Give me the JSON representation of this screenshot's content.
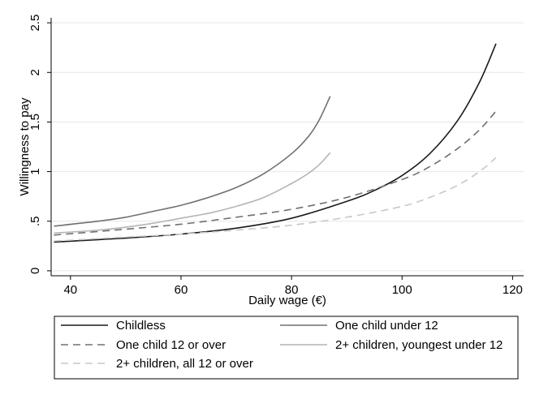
{
  "chart_data": {
    "type": "line",
    "xlabel": "Daily wage (€)",
    "ylabel": "Willingness to pay",
    "xlim": [
      36.5,
      122
    ],
    "ylim": [
      -0.05,
      2.55
    ],
    "x_ticks": [
      40,
      60,
      80,
      100,
      120
    ],
    "x_tick_labels": [
      "40",
      "60",
      "80",
      "100",
      "120"
    ],
    "y_ticks": [
      0,
      0.5,
      1,
      1.5,
      2,
      2.5
    ],
    "y_tick_labels": [
      "0",
      ".5",
      "1",
      "1.5",
      "2",
      "2.5"
    ],
    "grid": "horizontal",
    "legend_position": "bottom",
    "series": [
      {
        "name": "Childless",
        "color": "#1a1a1a",
        "dash": "solid",
        "x": [
          37,
          50,
          60,
          70,
          80,
          90,
          95,
          100,
          105,
          110,
          114,
          117
        ],
        "y": [
          0.29,
          0.33,
          0.37,
          0.43,
          0.53,
          0.7,
          0.81,
          0.96,
          1.18,
          1.51,
          1.9,
          2.29
        ]
      },
      {
        "name": "One child under 12",
        "color": "#707070",
        "dash": "solid",
        "x": [
          37,
          45,
          50,
          55,
          60,
          65,
          70,
          75,
          80,
          83,
          85,
          87
        ],
        "y": [
          0.45,
          0.5,
          0.54,
          0.6,
          0.66,
          0.74,
          0.84,
          0.98,
          1.18,
          1.35,
          1.52,
          1.76
        ]
      },
      {
        "name": "One child 12 or over",
        "color": "#707070",
        "dash": "dashed",
        "x": [
          37,
          50,
          60,
          70,
          80,
          90,
          100,
          105,
          110,
          114,
          117
        ],
        "y": [
          0.36,
          0.42,
          0.47,
          0.54,
          0.62,
          0.74,
          0.92,
          1.05,
          1.23,
          1.42,
          1.61
        ]
      },
      {
        "name": "2+ children, youngest under 12",
        "color": "#b4b4b4",
        "dash": "solid",
        "x": [
          37,
          45,
          50,
          55,
          60,
          65,
          70,
          75,
          80,
          83,
          85,
          87
        ],
        "y": [
          0.38,
          0.41,
          0.44,
          0.48,
          0.53,
          0.58,
          0.65,
          0.74,
          0.88,
          0.98,
          1.07,
          1.19
        ]
      },
      {
        "name": "2+ children, all 12 or over",
        "color": "#c8c8c8",
        "dash": "dashed",
        "x": [
          37,
          50,
          60,
          70,
          80,
          90,
          100,
          105,
          110,
          114,
          117
        ],
        "y": [
          0.3,
          0.34,
          0.37,
          0.41,
          0.46,
          0.54,
          0.65,
          0.74,
          0.86,
          1.0,
          1.14
        ]
      }
    ]
  }
}
